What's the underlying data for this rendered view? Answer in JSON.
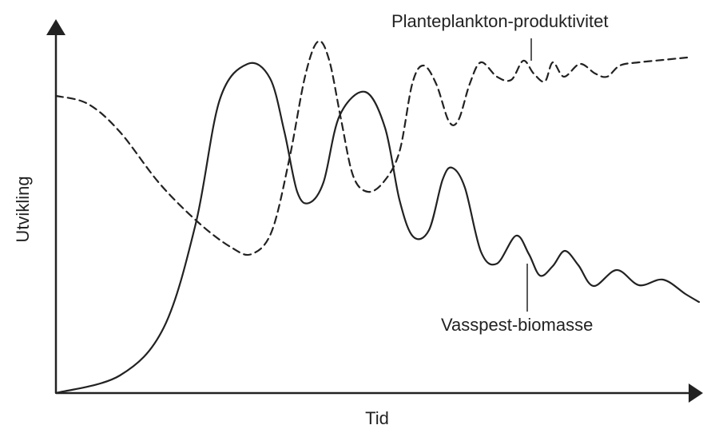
{
  "y_label": "Utvikling",
  "x_label": "Tid",
  "curves": [
    {
      "label": "Planteplankton-produktivitet"
    },
    {
      "label": "Vasspest-biomasse"
    }
  ]
}
